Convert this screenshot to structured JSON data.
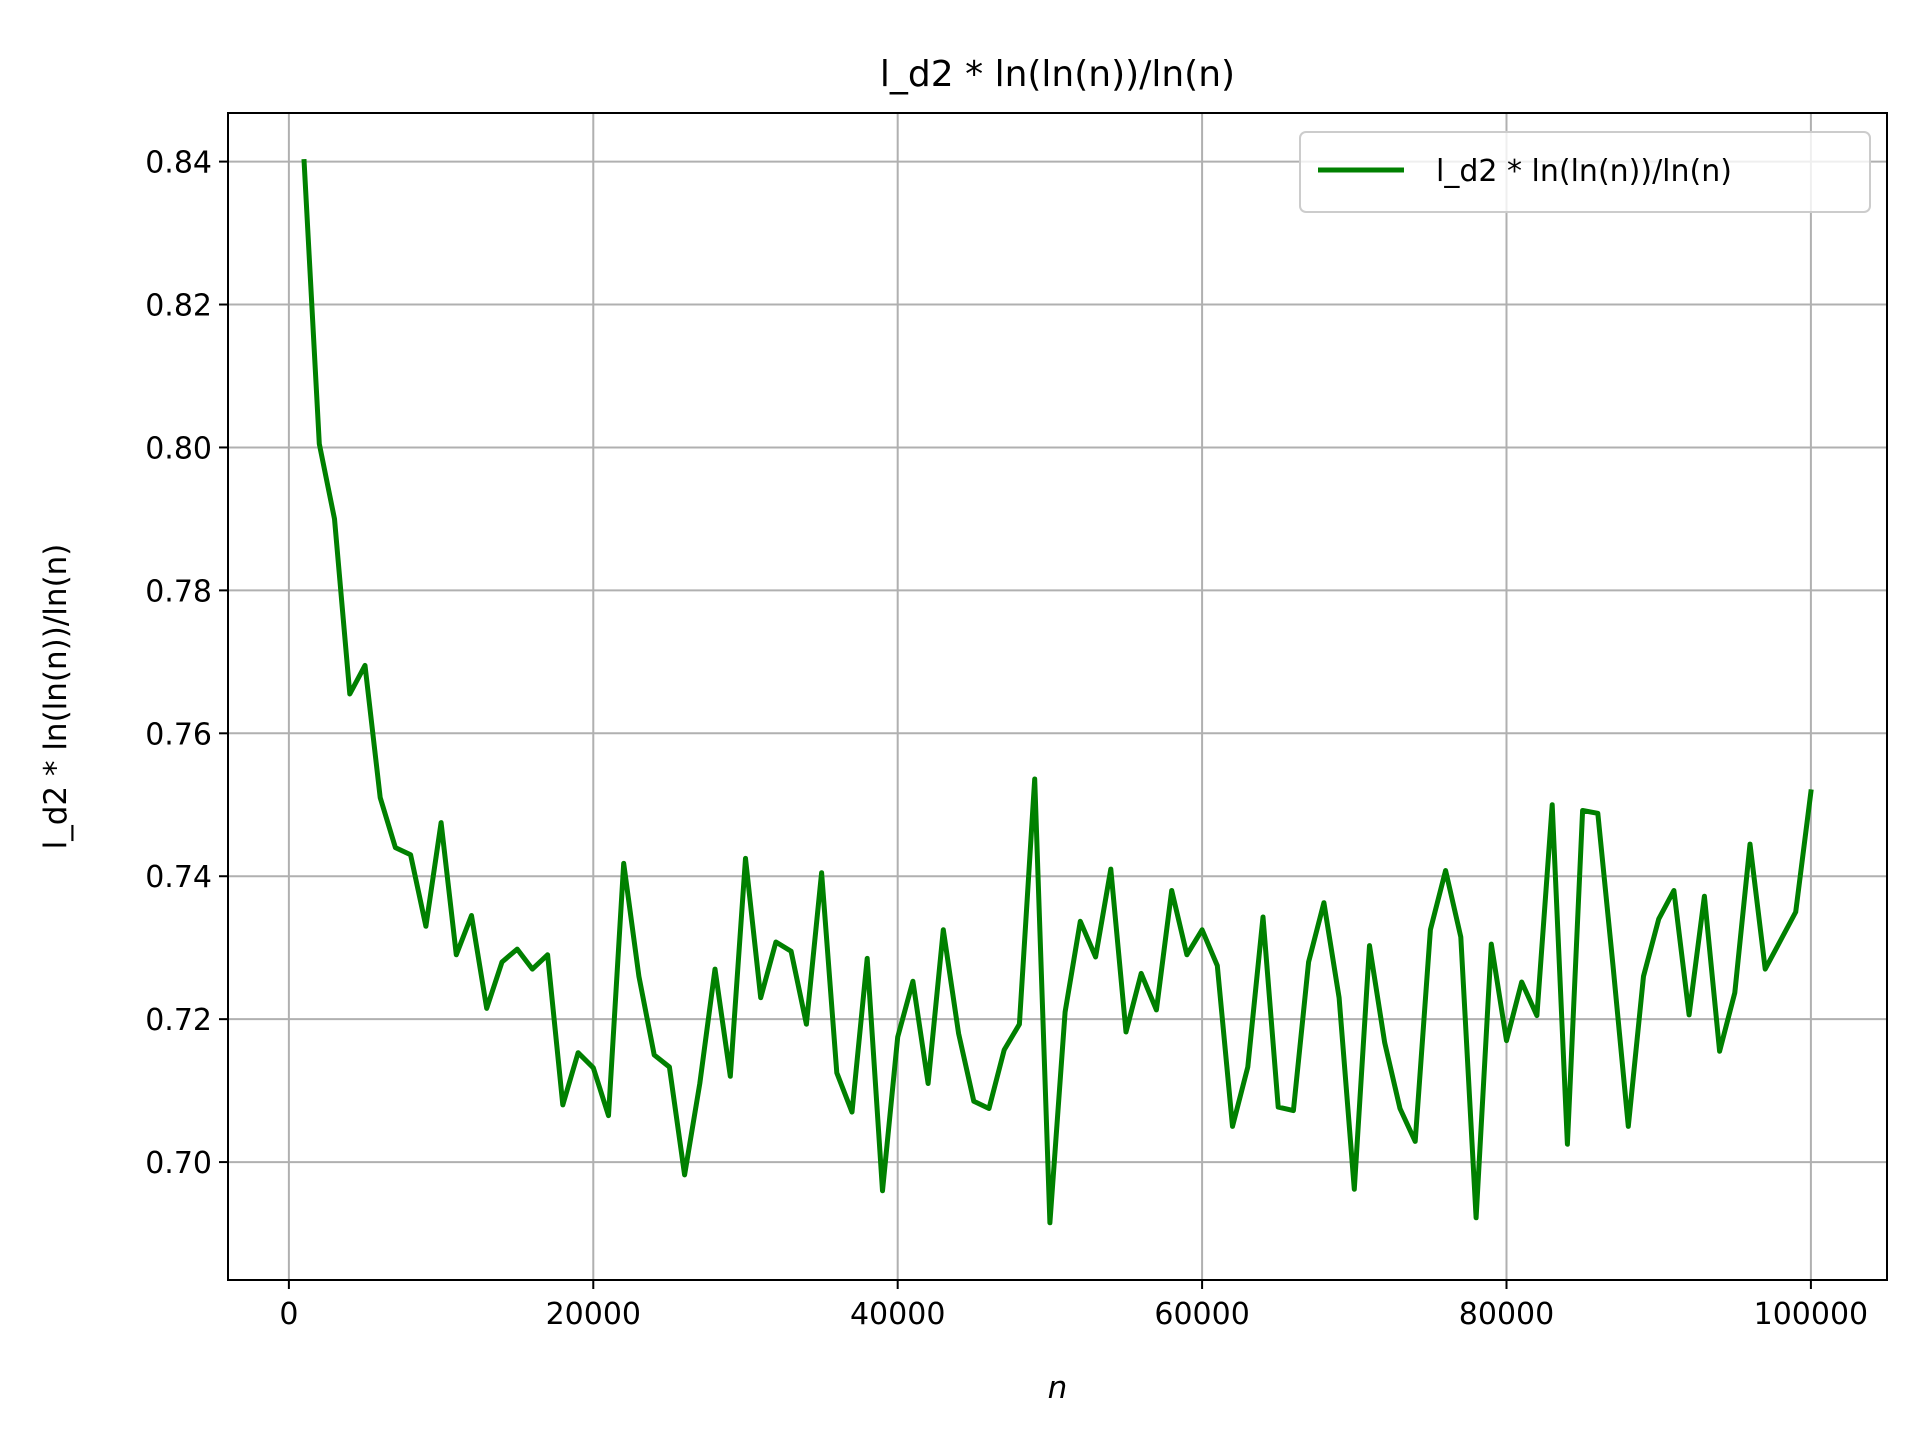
{
  "chart_data": {
    "type": "line",
    "title": "l_d2 * ln(ln(n))/ln(n)",
    "xlabel": "n",
    "ylabel": "l_d2 * ln(ln(n))/ln(n)",
    "xlim": [
      -4000,
      105000
    ],
    "ylim": [
      0.6835,
      0.8468
    ],
    "xticks": [
      0,
      20000,
      40000,
      60000,
      80000,
      100000
    ],
    "xtick_labels": [
      "0",
      "20000",
      "40000",
      "60000",
      "80000",
      "100000"
    ],
    "yticks": [
      0.7,
      0.72,
      0.74,
      0.76,
      0.78,
      0.8,
      0.82,
      0.84
    ],
    "ytick_labels": [
      "0.70",
      "0.72",
      "0.74",
      "0.76",
      "0.78",
      "0.80",
      "0.82",
      "0.84"
    ],
    "grid": true,
    "legend_position": "top-right",
    "series": [
      {
        "name": "l_d2 * ln(ln(n))/ln(n)",
        "color": "#008000",
        "x": [
          1000,
          2000,
          3000,
          4000,
          5000,
          6000,
          7000,
          8000,
          9000,
          10000,
          11000,
          12000,
          13000,
          14000,
          15000,
          16000,
          17000,
          18000,
          19000,
          20000,
          21000,
          22000,
          23000,
          24000,
          25000,
          26000,
          27000,
          28000,
          29000,
          30000,
          31000,
          32000,
          33000,
          34000,
          35000,
          36000,
          37000,
          38000,
          39000,
          40000,
          41000,
          42000,
          43000,
          44000,
          45000,
          46000,
          47000,
          48000,
          49000,
          50000,
          51000,
          52000,
          53000,
          54000,
          55000,
          56000,
          57000,
          58000,
          59000,
          60000,
          61000,
          62000,
          63000,
          64000,
          65000,
          66000,
          67000,
          68000,
          69000,
          70000,
          71000,
          72000,
          73000,
          74000,
          75000,
          76000,
          77000,
          78000,
          79000,
          80000,
          81000,
          82000,
          83000,
          84000,
          85000,
          86000,
          87000,
          88000,
          89000,
          90000,
          91000,
          92000,
          93000,
          94000,
          95000,
          96000,
          97000,
          98000,
          99000,
          100000
        ],
        "y": [
          0.84,
          0.8005,
          0.79,
          0.7655,
          0.7695,
          0.751,
          0.744,
          0.743,
          0.733,
          0.7475,
          0.729,
          0.7345,
          0.7215,
          0.728,
          0.7298,
          0.727,
          0.729,
          0.708,
          0.7153,
          0.7132,
          0.7065,
          0.7418,
          0.726,
          0.715,
          0.7133,
          0.6982,
          0.711,
          0.727,
          0.712,
          0.7425,
          0.723,
          0.7308,
          0.7295,
          0.7193,
          0.7405,
          0.7125,
          0.707,
          0.7285,
          0.696,
          0.7175,
          0.7253,
          0.711,
          0.7325,
          0.718,
          0.7085,
          0.7075,
          0.7157,
          0.7193,
          0.7536,
          0.6915,
          0.721,
          0.7337,
          0.7287,
          0.741,
          0.7182,
          0.7264,
          0.7213,
          0.738,
          0.729,
          0.7325,
          0.7275,
          0.705,
          0.7133,
          0.7343,
          0.7077,
          0.7072,
          0.728,
          0.7363,
          0.723,
          0.6962,
          0.7303,
          0.7167,
          0.7075,
          0.7029,
          0.7325,
          0.7408,
          0.7315,
          0.6922,
          0.7305,
          0.717,
          0.7252,
          0.7205,
          0.75,
          0.7025,
          0.7492,
          0.7488,
          0.7275,
          0.705,
          0.726,
          0.734,
          0.738,
          0.7206,
          0.7372,
          0.7155,
          0.7237,
          0.7445,
          0.727,
          0.731,
          0.735,
          0.7518
        ]
      }
    ]
  }
}
